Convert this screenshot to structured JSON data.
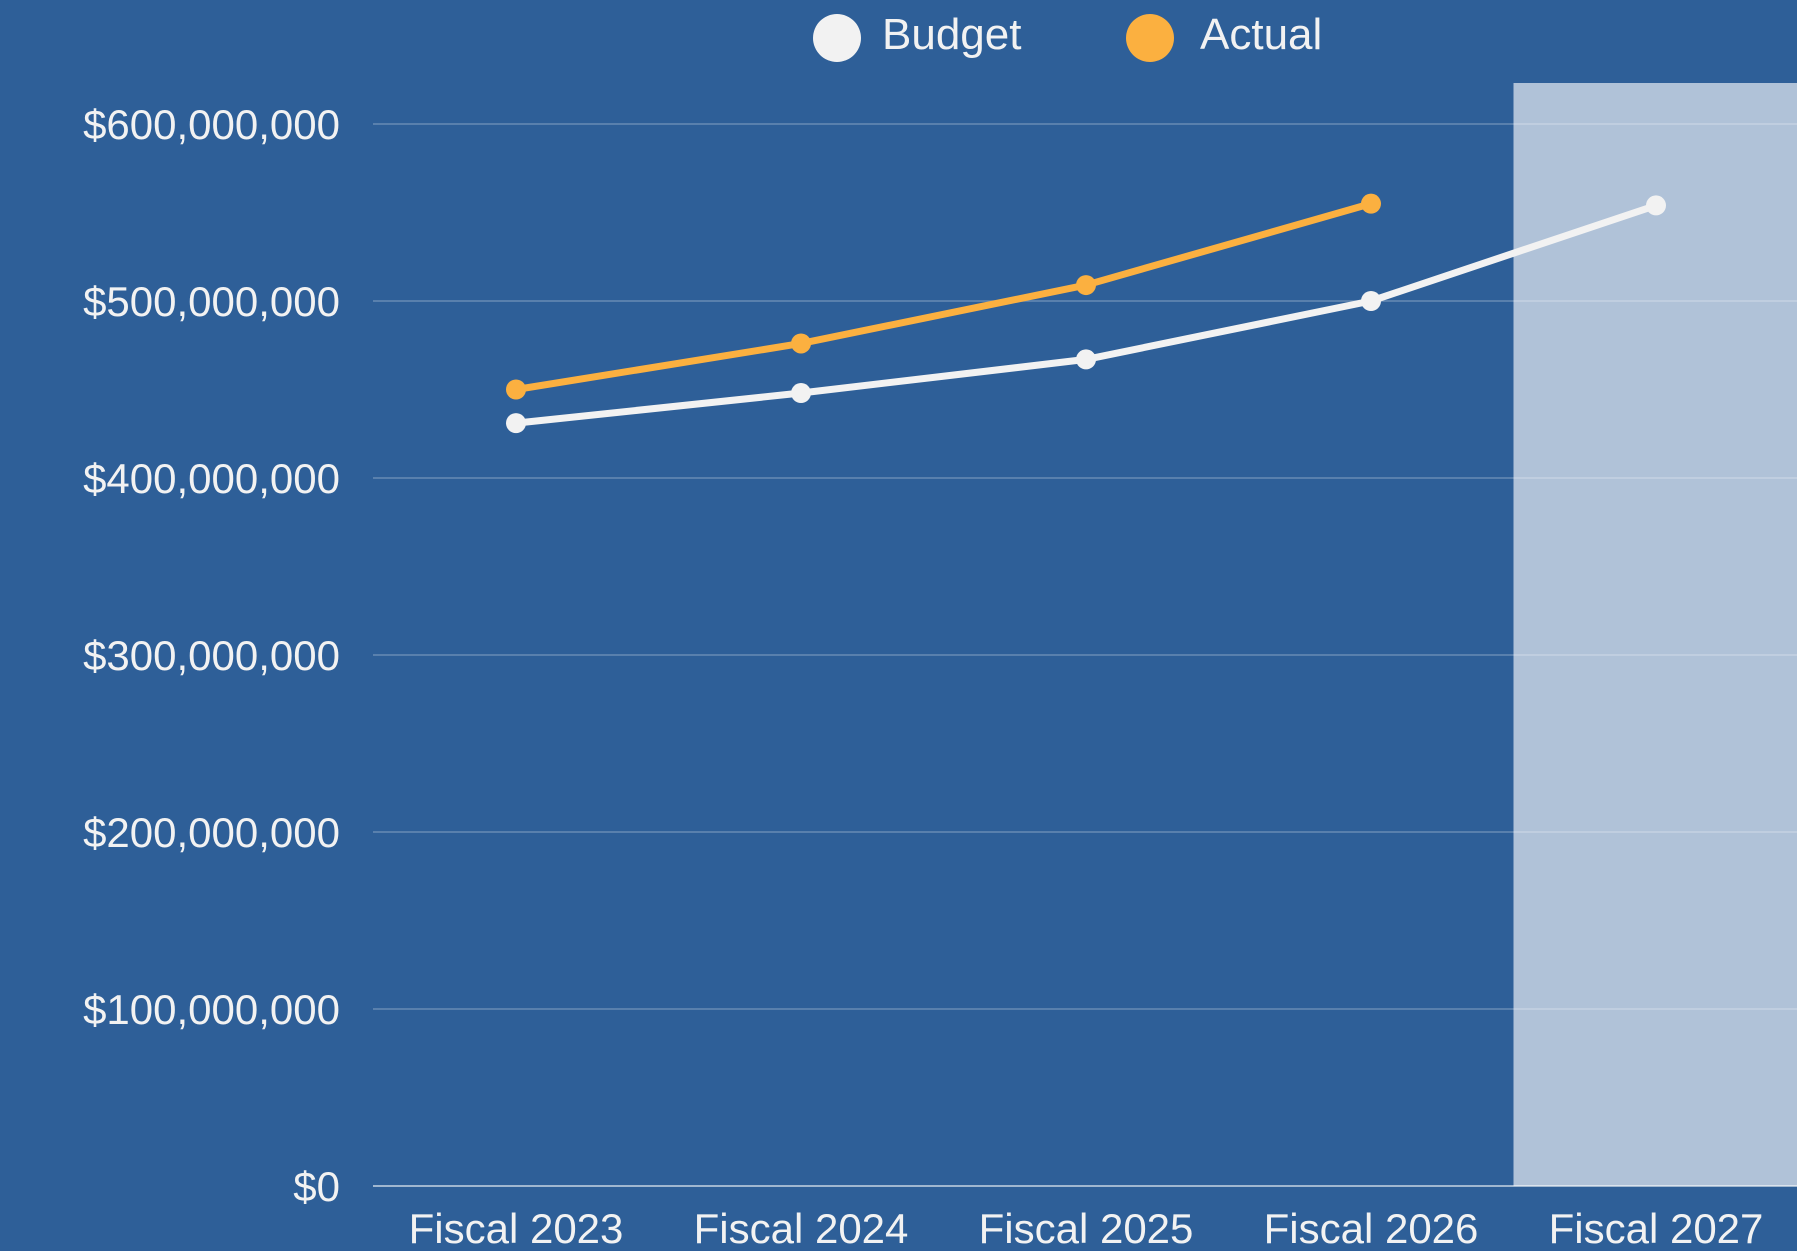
{
  "chart_data": {
    "type": "line",
    "categories": [
      "Fiscal 2023",
      "Fiscal 2024",
      "Fiscal 2025",
      "Fiscal 2026",
      "Fiscal 2027"
    ],
    "series": [
      {
        "name": "Budget",
        "color": "#f2f2f2",
        "values": [
          431000000,
          448000000,
          467000000,
          500000000,
          554000000
        ]
      },
      {
        "name": "Actual",
        "color": "#fbb040",
        "values": [
          450000000,
          476000000,
          509000000,
          555000000,
          null
        ]
      }
    ],
    "ylim": [
      0,
      600000000
    ],
    "y_ticks": [
      {
        "value": 0,
        "label": "$0"
      },
      {
        "value": 100000000,
        "label": "$100,000,000"
      },
      {
        "value": 200000000,
        "label": "$200,000,000"
      },
      {
        "value": 300000000,
        "label": "$300,000,000"
      },
      {
        "value": 400000000,
        "label": "$400,000,000"
      },
      {
        "value": 500000000,
        "label": "$500,000,000"
      },
      {
        "value": 600000000,
        "label": "$600,000,000"
      }
    ],
    "highlighted_category": "Fiscal 2027",
    "highlight_color": "#b0c2d8",
    "gridlines": true,
    "legend_position": "top",
    "title": "",
    "xlabel": "",
    "ylabel": ""
  }
}
